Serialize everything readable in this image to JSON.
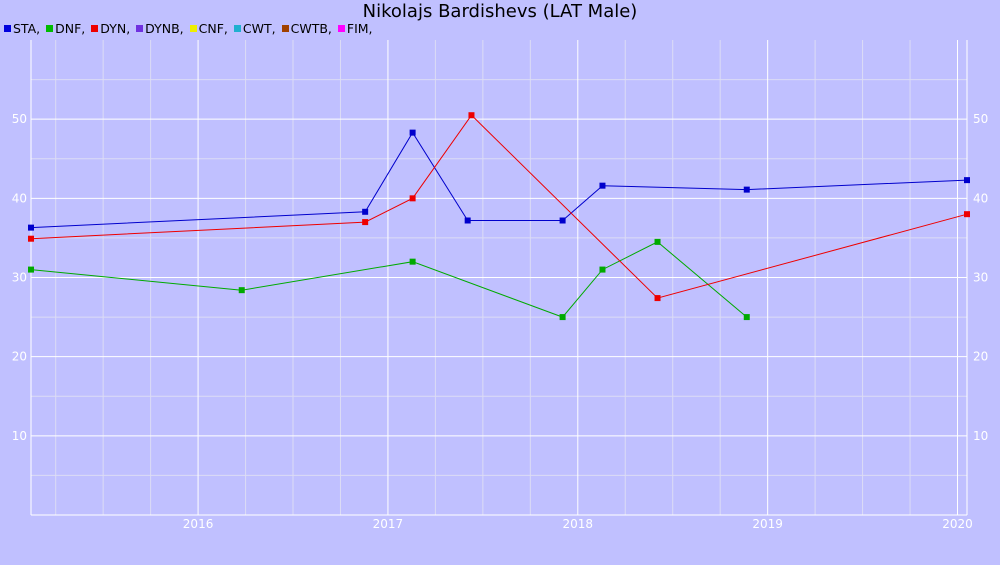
{
  "chart_data": {
    "type": "line",
    "title": "Nikolajs Bardishevs (LAT Male)",
    "xlabel": "",
    "ylabel": "",
    "xlim": [
      2015.12,
      2020.05
    ],
    "ylim": [
      0,
      60
    ],
    "x_ticks": [
      2016,
      2017,
      2018,
      2019,
      2020
    ],
    "x_tick_labels": [
      "2016",
      "2017",
      "2018",
      "2019",
      "2020"
    ],
    "y_ticks": [
      10,
      20,
      30,
      40,
      50
    ],
    "y_tick_labels": [
      "10",
      "20",
      "30",
      "40",
      "50"
    ],
    "grid": true,
    "legend_position": "top-left",
    "legend": [
      {
        "name": "STA,",
        "color": "#0000dd"
      },
      {
        "name": "DNF,",
        "color": "#00bb00"
      },
      {
        "name": "DYN,",
        "color": "#ee0000"
      },
      {
        "name": "DYNB,",
        "color": "#7030e0"
      },
      {
        "name": "CNF,",
        "color": "#eeee00"
      },
      {
        "name": "CWT,",
        "color": "#20b0d0"
      },
      {
        "name": "CWTB,",
        "color": "#a04000"
      },
      {
        "name": "FIM,",
        "color": "#ff00ff"
      }
    ],
    "series": [
      {
        "name": "STA",
        "color": "#0000cc",
        "x": [
          2015.12,
          2016.88,
          2017.13,
          2017.42,
          2017.92,
          2018.13,
          2018.89,
          2020.05
        ],
        "y": [
          36.3,
          38.3,
          48.3,
          37.2,
          37.2,
          41.6,
          41.1,
          42.3
        ]
      },
      {
        "name": "DNF",
        "color": "#00aa00",
        "x": [
          2015.12,
          2016.23,
          2017.13,
          2017.92,
          2018.13,
          2018.42,
          2018.89
        ],
        "y": [
          31.0,
          28.4,
          32.0,
          25.0,
          31.0,
          34.5,
          25.0
        ]
      },
      {
        "name": "DYN",
        "color": "#ee0000",
        "x": [
          2015.12,
          2016.88,
          2017.13,
          2017.44,
          2018.42,
          2020.05
        ],
        "y": [
          34.9,
          37.0,
          40.0,
          50.5,
          27.4,
          38.0
        ]
      }
    ]
  }
}
